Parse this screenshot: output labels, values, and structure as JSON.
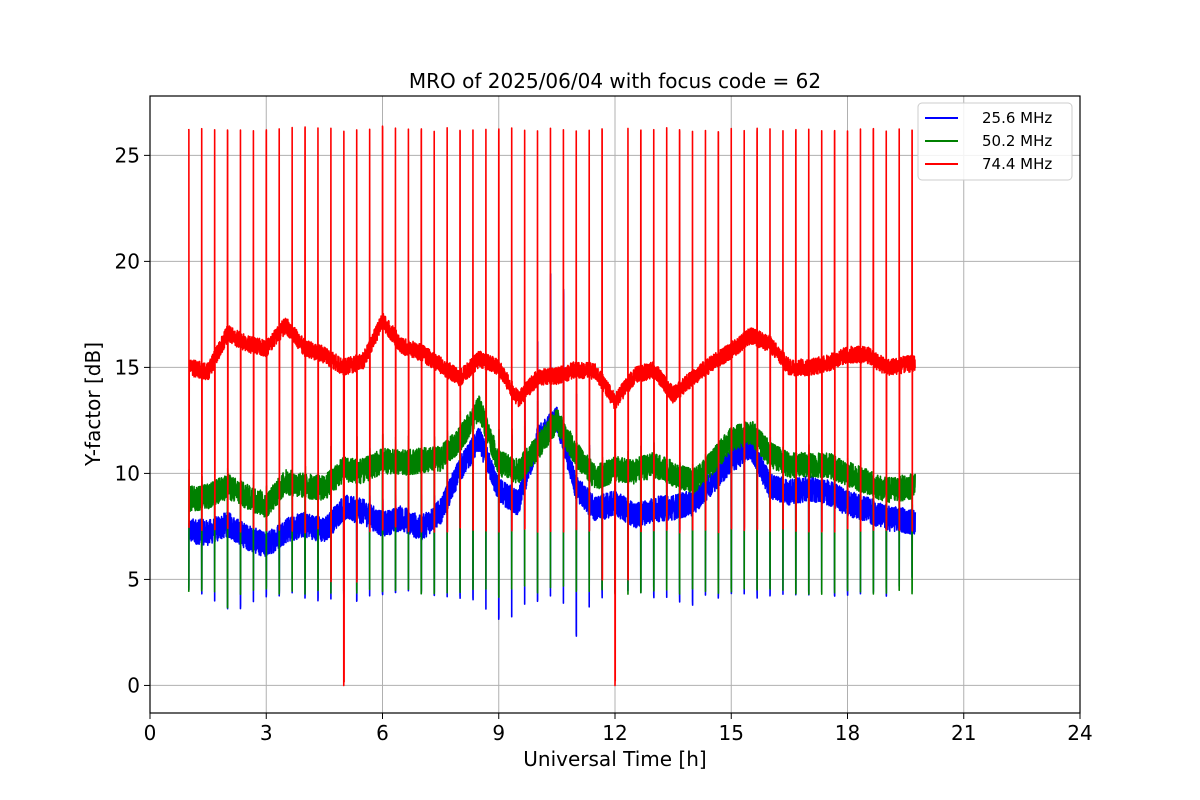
{
  "chart_data": {
    "type": "line",
    "title": "MRO of 2025/06/04 with focus code = 62",
    "xlabel": "Universal Time [h]",
    "ylabel": "Y-factor [dB]",
    "xlim": [
      0,
      24
    ],
    "ylim": [
      -1.3,
      27.8
    ],
    "xticks": [
      0,
      3,
      6,
      9,
      12,
      15,
      18,
      21,
      24
    ],
    "yticks": [
      0,
      5,
      10,
      15,
      20,
      25
    ],
    "grid": true,
    "legend_position": "top-right",
    "period_h": 0.3333,
    "data_start_h": 1.0,
    "data_end_h": 19.75,
    "series": [
      {
        "name": "25.6 MHz",
        "color": "#0000ff",
        "x": [
          1.0,
          1.5,
          2.0,
          2.5,
          3.0,
          3.5,
          4.0,
          4.5,
          5.0,
          5.5,
          6.0,
          6.5,
          7.0,
          7.5,
          8.0,
          8.5,
          9.0,
          9.5,
          10.0,
          10.5,
          11.0,
          11.5,
          12.0,
          12.5,
          13.0,
          13.5,
          14.0,
          14.5,
          15.0,
          15.5,
          16.0,
          16.5,
          17.0,
          17.5,
          18.0,
          18.5,
          19.0,
          19.75
        ],
        "values": [
          7.3,
          7.2,
          7.6,
          7.0,
          6.6,
          7.3,
          7.6,
          7.3,
          8.4,
          8.2,
          7.6,
          7.9,
          7.4,
          8.2,
          10.2,
          11.6,
          9.2,
          8.6,
          11.6,
          12.6,
          9.3,
          8.3,
          8.6,
          8.0,
          8.3,
          8.4,
          8.6,
          9.6,
          10.6,
          11.3,
          9.4,
          9.1,
          9.3,
          9.1,
          8.6,
          8.3,
          7.9,
          7.7
        ],
        "min_values": [
          4.4,
          4.1,
          3.3,
          3.5,
          4.1,
          4.1,
          4.1,
          3.9,
          4.1,
          3.9,
          4.1,
          4.1,
          4.1,
          4.1,
          4.1,
          3.6,
          2.9,
          3.2,
          3.9,
          4.1,
          2.3,
          4.0,
          4.3,
          4.2,
          4.1,
          4.1,
          3.6,
          4.1,
          4.1,
          4.1,
          4.1,
          4.1,
          4.1,
          4.2,
          4.2,
          4.2,
          4.1,
          5.2
        ],
        "max_values": [
          8.0,
          8.0,
          8.5,
          7.8,
          7.8,
          8.0,
          8.5,
          8.4,
          9.0,
          9.0,
          9.0,
          9.4,
          9.0,
          9.6,
          11.4,
          13.0,
          11.0,
          12.6,
          16.2,
          21.2,
          14.2,
          10.4,
          10.8,
          9.6,
          10.0,
          9.6,
          10.2,
          10.6,
          11.8,
          12.0,
          10.6,
          10.0,
          10.4,
          10.2,
          9.8,
          9.2,
          8.6,
          8.6
        ]
      },
      {
        "name": "50.2 MHz",
        "color": "#008000",
        "x": [
          1.0,
          1.5,
          2.0,
          2.5,
          3.0,
          3.5,
          4.0,
          4.5,
          5.0,
          5.5,
          6.0,
          6.5,
          7.0,
          7.5,
          8.0,
          8.5,
          9.0,
          9.5,
          10.0,
          10.5,
          11.0,
          11.5,
          12.0,
          12.5,
          13.0,
          13.5,
          14.0,
          14.5,
          15.0,
          15.5,
          16.0,
          16.5,
          17.0,
          17.5,
          18.0,
          18.5,
          19.0,
          19.75
        ],
        "values": [
          8.8,
          8.9,
          9.4,
          8.9,
          8.5,
          9.6,
          9.4,
          9.3,
          10.2,
          10.1,
          10.6,
          10.5,
          10.6,
          10.7,
          11.6,
          13.1,
          10.5,
          10.1,
          11.2,
          12.5,
          10.9,
          9.8,
          10.2,
          10.1,
          10.4,
          10.0,
          9.6,
          10.5,
          11.6,
          12.0,
          10.9,
          10.4,
          10.4,
          10.4,
          10.0,
          9.6,
          9.2,
          9.4
        ],
        "min_values": [
          4.4,
          4.3,
          3.5,
          4.3,
          4.3,
          4.3,
          4.3,
          4.3,
          4.3,
          4.3,
          4.3,
          4.3,
          4.3,
          4.3,
          4.3,
          4.3,
          4.0,
          4.3,
          4.3,
          4.3,
          4.3,
          4.3,
          4.3,
          4.3,
          4.3,
          4.3,
          4.3,
          4.3,
          4.3,
          4.3,
          4.3,
          4.3,
          4.3,
          4.3,
          4.3,
          4.3,
          4.3,
          4.3
        ],
        "max_values": [
          10.2,
          9.8,
          10.4,
          10.0,
          9.8,
          10.6,
          10.4,
          10.6,
          13.2,
          11.2,
          12.0,
          11.8,
          12.0,
          12.0,
          13.0,
          16.0,
          12.6,
          12.0,
          13.6,
          15.4,
          12.2,
          11.0,
          11.4,
          11.2,
          11.6,
          11.0,
          10.6,
          11.4,
          12.4,
          12.6,
          11.8,
          11.4,
          11.6,
          11.2,
          10.8,
          10.2,
          9.8,
          10.0
        ]
      },
      {
        "name": "74.4 MHz",
        "color": "#ff0000",
        "x": [
          1.0,
          1.5,
          2.0,
          2.5,
          3.0,
          3.5,
          4.0,
          4.5,
          5.0,
          5.5,
          6.0,
          6.5,
          7.0,
          7.5,
          8.0,
          8.5,
          9.0,
          9.5,
          10.0,
          10.5,
          11.0,
          11.5,
          12.0,
          12.5,
          13.0,
          13.5,
          14.0,
          14.5,
          15.0,
          15.5,
          16.0,
          16.5,
          17.0,
          17.5,
          18.0,
          18.5,
          19.0,
          19.75
        ],
        "values": [
          15.0,
          14.8,
          16.6,
          16.1,
          15.9,
          17.0,
          15.9,
          15.6,
          15.0,
          15.3,
          17.2,
          16.0,
          15.7,
          15.1,
          14.5,
          15.4,
          15.0,
          13.5,
          14.5,
          14.6,
          14.9,
          14.8,
          13.4,
          14.6,
          14.9,
          13.7,
          14.5,
          15.2,
          15.8,
          16.5,
          16.1,
          15.0,
          15.0,
          15.2,
          15.6,
          15.6,
          15.0,
          15.2
        ],
        "min_values": [
          7.2,
          7.2,
          7.2,
          7.2,
          7.2,
          7.2,
          7.2,
          7.2,
          0.0,
          7.2,
          7.2,
          7.2,
          7.2,
          7.2,
          7.2,
          7.2,
          7.2,
          7.2,
          7.2,
          7.2,
          7.2,
          7.2,
          0.0,
          7.2,
          7.2,
          7.2,
          7.2,
          7.2,
          7.2,
          7.2,
          7.2,
          7.2,
          7.2,
          7.2,
          7.2,
          7.2,
          7.2,
          7.2
        ],
        "max_values": [
          26.3,
          26.3,
          26.3,
          26.3,
          26.3,
          26.4,
          26.4,
          26.3,
          26.3,
          26.3,
          26.4,
          26.3,
          26.3,
          26.3,
          26.3,
          26.3,
          26.3,
          26.3,
          26.3,
          26.3,
          26.3,
          26.3,
          26.3,
          26.3,
          26.3,
          26.3,
          26.3,
          26.3,
          26.3,
          26.3,
          26.3,
          26.3,
          26.3,
          26.3,
          26.3,
          26.3,
          26.3,
          26.3
        ]
      }
    ]
  }
}
